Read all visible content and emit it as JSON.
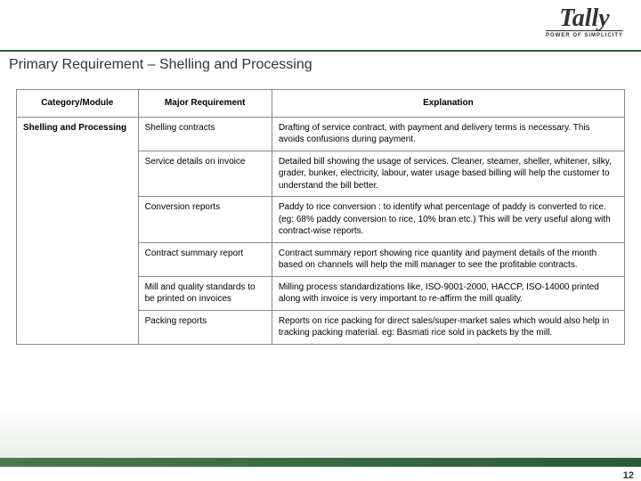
{
  "logo": {
    "brand": "Tally",
    "tagline": "POWER OF SIMPLICITY"
  },
  "title": "Primary Requirement – Shelling and Processing",
  "table": {
    "headers": [
      "Category/Module",
      "Major Requirement",
      "Explanation"
    ],
    "category": "Shelling and Processing",
    "rows": [
      {
        "req": "Shelling contracts",
        "exp": "Drafting of service contract, with payment and delivery terms is necessary. This avoids confusions during payment."
      },
      {
        "req": "Service details on invoice",
        "exp": "Detailed bill showing the usage of services. Cleaner, steamer, sheller, whitener, silky, grader, bunker, electricity, labour, water usage based billing will help the customer to understand the bill better."
      },
      {
        "req": "Conversion reports",
        "exp": "Paddy to rice conversion : to identify what percentage of paddy is converted to rice. (eg: 68% paddy conversion to rice, 10% bran etc.) This will be very useful along with contract-wise reports."
      },
      {
        "req": "Contract summary report",
        "exp": "Contract summary report showing rice quantity and payment details of the month based on channels will help the mill manager to see the profitable contracts."
      },
      {
        "req": "Mill and quality standards to be printed on invoices",
        "exp": "Milling process standardizations like, ISO-9001-2000, HACCP, ISO-14000 printed along with invoice is very important to re-affirm the mill quality."
      },
      {
        "req": "Packing reports",
        "exp": "Reports on rice packing for direct sales/super-market sales which would also help in tracking packing material. eg: Basmati rice sold in packets by the mill."
      }
    ]
  },
  "pageNumber": "12",
  "colors": {
    "accent": "#2a5a3a",
    "border": "#888888"
  }
}
